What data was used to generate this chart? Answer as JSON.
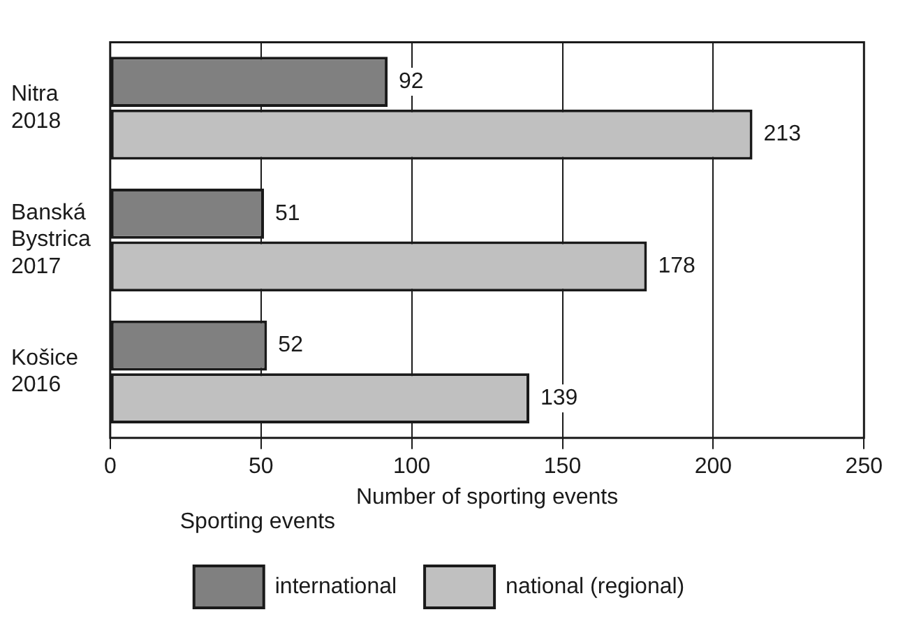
{
  "chart_data": {
    "type": "bar",
    "orientation": "horizontal",
    "xlabel": "Number of sporting events",
    "legend_title": "Sporting events",
    "categories": [
      "Nitra\n2018",
      "Banská\nBystrica\n2017",
      "Košice\n2016"
    ],
    "series": [
      {
        "name": "international",
        "color": "#808080",
        "values": [
          92,
          51,
          52
        ]
      },
      {
        "name": "national (regional)",
        "color": "#c0c0c0",
        "values": [
          213,
          178,
          139
        ]
      }
    ],
    "xlim": [
      0,
      250
    ],
    "xticks": [
      0,
      50,
      100,
      150,
      200,
      250
    ],
    "grid": "x",
    "legend": "bottom",
    "data_labels": true
  }
}
